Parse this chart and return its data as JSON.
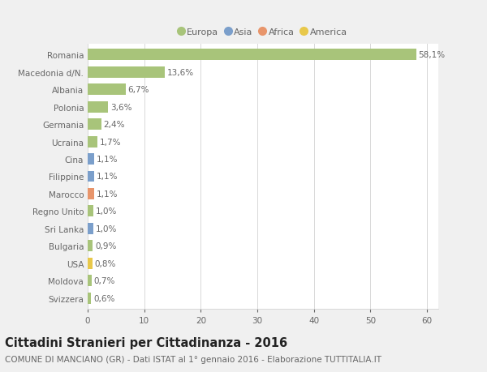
{
  "categories": [
    "Romania",
    "Macedonia d/N.",
    "Albania",
    "Polonia",
    "Germania",
    "Ucraina",
    "Cina",
    "Filippine",
    "Marocco",
    "Regno Unito",
    "Sri Lanka",
    "Bulgaria",
    "USA",
    "Moldova",
    "Svizzera"
  ],
  "values": [
    58.1,
    13.6,
    6.7,
    3.6,
    2.4,
    1.7,
    1.1,
    1.1,
    1.1,
    1.0,
    1.0,
    0.9,
    0.8,
    0.7,
    0.6
  ],
  "labels": [
    "58,1%",
    "13,6%",
    "6,7%",
    "3,6%",
    "2,4%",
    "1,7%",
    "1,1%",
    "1,1%",
    "1,1%",
    "1,0%",
    "1,0%",
    "0,9%",
    "0,8%",
    "0,7%",
    "0,6%"
  ],
  "colors": [
    "#a8c47a",
    "#a8c47a",
    "#a8c47a",
    "#a8c47a",
    "#a8c47a",
    "#a8c47a",
    "#7b9fcb",
    "#7b9fcb",
    "#e8956b",
    "#a8c47a",
    "#7b9fcb",
    "#a8c47a",
    "#e8c84a",
    "#a8c47a",
    "#a8c47a"
  ],
  "legend_labels": [
    "Europa",
    "Asia",
    "Africa",
    "America"
  ],
  "legend_colors": [
    "#a8c47a",
    "#7b9fcb",
    "#e8956b",
    "#e8c84a"
  ],
  "title": "Cittadini Stranieri per Cittadinanza - 2016",
  "subtitle": "COMUNE DI MANCIANO (GR) - Dati ISTAT al 1° gennaio 2016 - Elaborazione TUTTITALIA.IT",
  "xlim": [
    0,
    62
  ],
  "xticks": [
    0,
    10,
    20,
    30,
    40,
    50,
    60
  ],
  "background_color": "#f0f0f0",
  "plot_bg_color": "#ffffff",
  "grid_color": "#d8d8d8",
  "text_color": "#666666",
  "title_color": "#222222",
  "subtitle_color": "#666666",
  "title_fontsize": 10.5,
  "subtitle_fontsize": 7.5,
  "label_fontsize": 7.5,
  "tick_fontsize": 7.5,
  "bar_height": 0.65
}
